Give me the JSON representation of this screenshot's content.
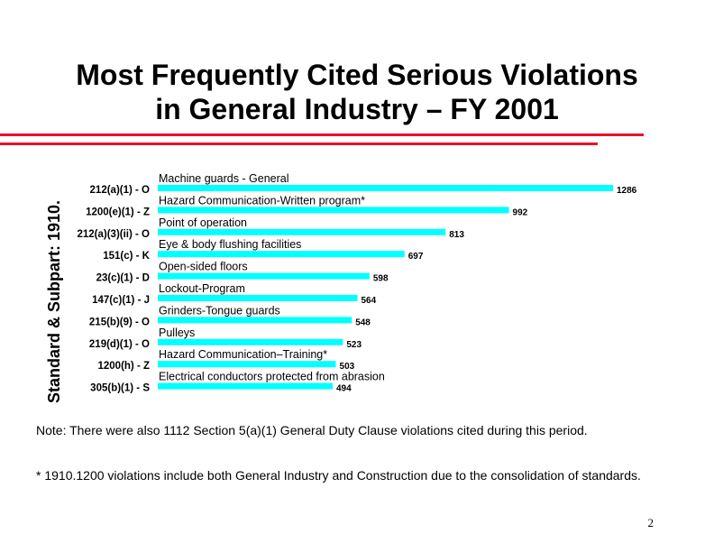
{
  "slide": {
    "title_line1": "Most Frequently Cited Serious Violations",
    "title_line2": "in General Industry – FY 2001",
    "note": "Note: There were also 1112 Section 5(a)(1) General Duty Clause violations cited during this period.",
    "footnote": "* 1910.1200 violations include both General Industry and Construction due to the consolidation of standards.",
    "page_number": "2",
    "accent_color": "#e8112d",
    "bar_color": "#00ffff"
  },
  "chart_data": {
    "type": "bar",
    "orientation": "horizontal",
    "ylabel": "Standard & Subpart: 1910.",
    "categories": [
      "212(a)(1) - O",
      "1200(e)(1) - Z",
      "212(a)(3)(ii) - O",
      "151(c) - K",
      "23(c)(1) - D",
      "147(c)(1) - J",
      "215(b)(9) - O",
      "219(d)(1) - O",
      "1200(h) - Z",
      "305(b)(1) - S"
    ],
    "descriptions": [
      "Machine guards - General",
      "Hazard Communication-Written program*",
      "Point of operation",
      "Eye & body flushing facilities",
      "Open-sided floors",
      "Lockout-Program",
      "Grinders-Tongue guards",
      "Pulleys",
      "Hazard Communication–Training*",
      "Electrical conductors protected from abrasion"
    ],
    "values": [
      1286,
      992,
      813,
      697,
      598,
      564,
      548,
      523,
      503,
      494
    ],
    "xlim": [
      0,
      1286
    ],
    "grid": false,
    "legend": "none"
  }
}
